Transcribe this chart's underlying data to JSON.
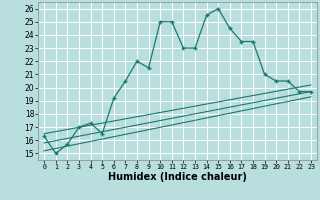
{
  "main_x": [
    0,
    1,
    2,
    3,
    4,
    5,
    6,
    7,
    8,
    9,
    10,
    11,
    12,
    13,
    14,
    15,
    16,
    17,
    18,
    19,
    20,
    21,
    22,
    23
  ],
  "main_y": [
    16.3,
    15.0,
    15.7,
    17.0,
    17.3,
    16.5,
    19.2,
    20.5,
    22.0,
    21.5,
    25.0,
    25.0,
    23.0,
    23.0,
    25.5,
    26.0,
    24.5,
    23.5,
    23.5,
    21.0,
    20.5,
    20.5,
    19.7,
    19.7
  ],
  "line2_x": [
    0,
    23
  ],
  "line2_y": [
    16.5,
    20.2
  ],
  "line3_x": [
    0,
    23
  ],
  "line3_y": [
    15.8,
    19.7
  ],
  "line4_x": [
    0,
    23
  ],
  "line4_y": [
    15.2,
    19.3
  ],
  "color": "#1a7a6e",
  "bg_color": "#b8dede",
  "grid_color": "#ffffff",
  "xlabel": "Humidex (Indice chaleur)",
  "xlim": [
    0,
    23
  ],
  "ylim": [
    14.5,
    26.5
  ],
  "yticks": [
    15,
    16,
    17,
    18,
    19,
    20,
    21,
    22,
    23,
    24,
    25,
    26
  ],
  "xticks": [
    0,
    1,
    2,
    3,
    4,
    5,
    6,
    7,
    8,
    9,
    10,
    11,
    12,
    13,
    14,
    15,
    16,
    17,
    18,
    19,
    20,
    21,
    22,
    23
  ]
}
